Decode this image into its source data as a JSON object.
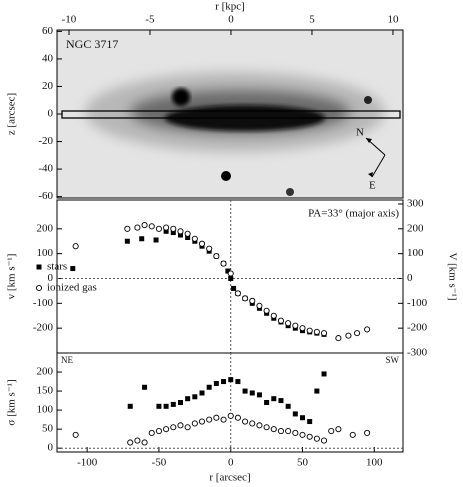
{
  "chart_data": [
    {
      "type": "image",
      "title": "NGC 3717",
      "xlabel": "r [kpc]",
      "ylabel": "z [arcsec]",
      "xlim": [
        -10.74,
        10.62
      ],
      "xticks": [
        -10,
        -5,
        0,
        5,
        10
      ],
      "ylim": [
        -61,
        61
      ],
      "yticks": [
        60,
        40,
        20,
        0,
        -20,
        -40,
        -60
      ],
      "annotations": [
        "N",
        "E"
      ]
    },
    {
      "type": "scatter",
      "annotation": "PA=33° (major axis)",
      "ylabel": "v [km s⁻¹]",
      "y2label": "V [km s⁻¹]",
      "xlim": [
        -121,
        120
      ],
      "ylim": [
        -300,
        316
      ],
      "yticks": [
        200,
        100,
        0,
        -100,
        -200
      ],
      "y2lim": [
        -300,
        316
      ],
      "y2ticks": [
        300,
        200,
        100,
        0,
        -100,
        -200,
        -300
      ],
      "series": [
        {
          "name": "stars",
          "color": "#000000",
          "marker": "square",
          "x": [
            -110,
            -72,
            -62,
            -52,
            -45,
            -40,
            -35,
            -30,
            -25,
            -20,
            -15,
            -10,
            -5,
            -2,
            0,
            2,
            5,
            10,
            15,
            20,
            25,
            30,
            35,
            40,
            45,
            50,
            55,
            60,
            65
          ],
          "values": [
            40,
            150,
            160,
            155,
            190,
            185,
            175,
            165,
            150,
            130,
            110,
            90,
            60,
            30,
            0,
            -40,
            -60,
            -80,
            -100,
            -120,
            -140,
            -160,
            -175,
            -190,
            -200,
            -210,
            -215,
            -220,
            -225
          ]
        },
        {
          "name": "ionized gas",
          "color": "#000000",
          "marker": "circle",
          "x": [
            -108,
            -72,
            -65,
            -60,
            -55,
            -50,
            -45,
            -40,
            -35,
            -30,
            -25,
            -20,
            -15,
            -10,
            -5,
            0,
            5,
            10,
            15,
            20,
            25,
            30,
            35,
            40,
            45,
            50,
            55,
            60,
            65,
            75,
            82,
            88,
            95
          ],
          "values": [
            130,
            200,
            205,
            215,
            210,
            200,
            205,
            200,
            190,
            180,
            160,
            140,
            120,
            90,
            60,
            20,
            -60,
            -80,
            -90,
            -110,
            -130,
            -150,
            -170,
            -180,
            -190,
            -200,
            -210,
            -215,
            -220,
            -240,
            -230,
            -220,
            -205
          ]
        }
      ]
    },
    {
      "type": "scatter",
      "xlabel": "r [arcsec]",
      "ylabel": "σ [km s⁻¹]",
      "annotations": [
        "NE",
        "SW"
      ],
      "xlim": [
        -121,
        120
      ],
      "xticks": [
        -100,
        -50,
        0,
        50,
        100
      ],
      "ylim": [
        -10,
        250
      ],
      "yticks": [
        0,
        50,
        100,
        150,
        200
      ],
      "series": [
        {
          "color": "#000000",
          "marker": "square",
          "x": [
            -70,
            -60,
            -50,
            -45,
            -40,
            -35,
            -30,
            -25,
            -20,
            -15,
            -10,
            -5,
            0,
            5,
            10,
            15,
            20,
            25,
            30,
            35,
            40,
            45,
            50,
            55,
            60,
            65
          ],
          "values": [
            110,
            160,
            110,
            110,
            115,
            120,
            130,
            135,
            145,
            160,
            170,
            175,
            180,
            175,
            150,
            145,
            140,
            120,
            130,
            125,
            110,
            90,
            80,
            70,
            150,
            195
          ]
        },
        {
          "color": "#000000",
          "marker": "circle",
          "x": [
            -108,
            -70,
            -65,
            -60,
            -55,
            -50,
            -45,
            -40,
            -35,
            -30,
            -25,
            -20,
            -15,
            -10,
            -5,
            0,
            5,
            10,
            15,
            20,
            25,
            30,
            35,
            40,
            45,
            50,
            55,
            60,
            65,
            70,
            75,
            85,
            95
          ],
          "values": [
            35,
            15,
            20,
            15,
            40,
            45,
            50,
            55,
            60,
            55,
            65,
            70,
            75,
            80,
            75,
            85,
            80,
            70,
            65,
            60,
            55,
            50,
            45,
            45,
            40,
            35,
            30,
            25,
            20,
            45,
            50,
            35,
            40
          ]
        }
      ]
    }
  ]
}
